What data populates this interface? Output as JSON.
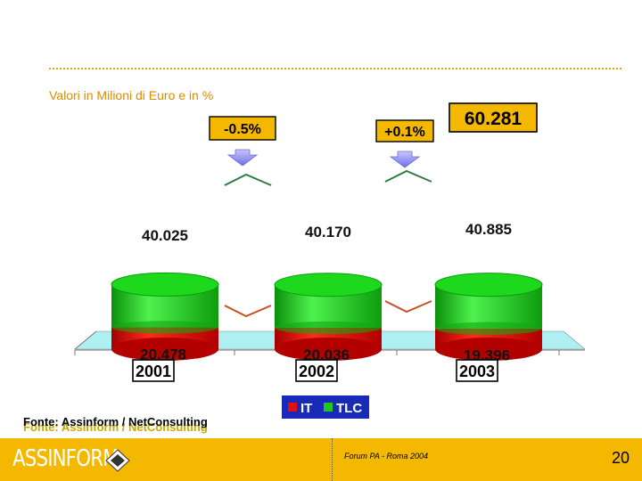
{
  "subtitle": "Valori in Milioni di Euro e in %",
  "source_text": "Fonte: Assinform / NetConsulting",
  "footer": {
    "brand": "ASSINFORM",
    "forum": "Forum PA - Roma 2004",
    "page": "20"
  },
  "colors": {
    "it": "#e31010",
    "tlc": "#1ec81e",
    "floor": "#aef0f2",
    "accent": "#f5b800"
  },
  "chart_data": {
    "type": "bar",
    "stacked": true,
    "categories": [
      "2001",
      "2002",
      "2003"
    ],
    "series": [
      {
        "name": "IT",
        "values": [
          20.478,
          20.036,
          19.396
        ],
        "labels": [
          "20.478",
          "20.036",
          "19.396"
        ]
      },
      {
        "name": "TLC",
        "values": [
          40.025,
          40.17,
          40.885
        ],
        "labels": [
          "40.025",
          "40.170",
          "40.885"
        ]
      }
    ],
    "callouts": [
      {
        "text": "-0.5%",
        "between": [
          0,
          1
        ]
      },
      {
        "text": "+0.1%",
        "between": [
          1,
          2
        ]
      }
    ],
    "total_label": "60.281",
    "legend": [
      "IT",
      "TLC"
    ],
    "legend_position": "bottom"
  }
}
